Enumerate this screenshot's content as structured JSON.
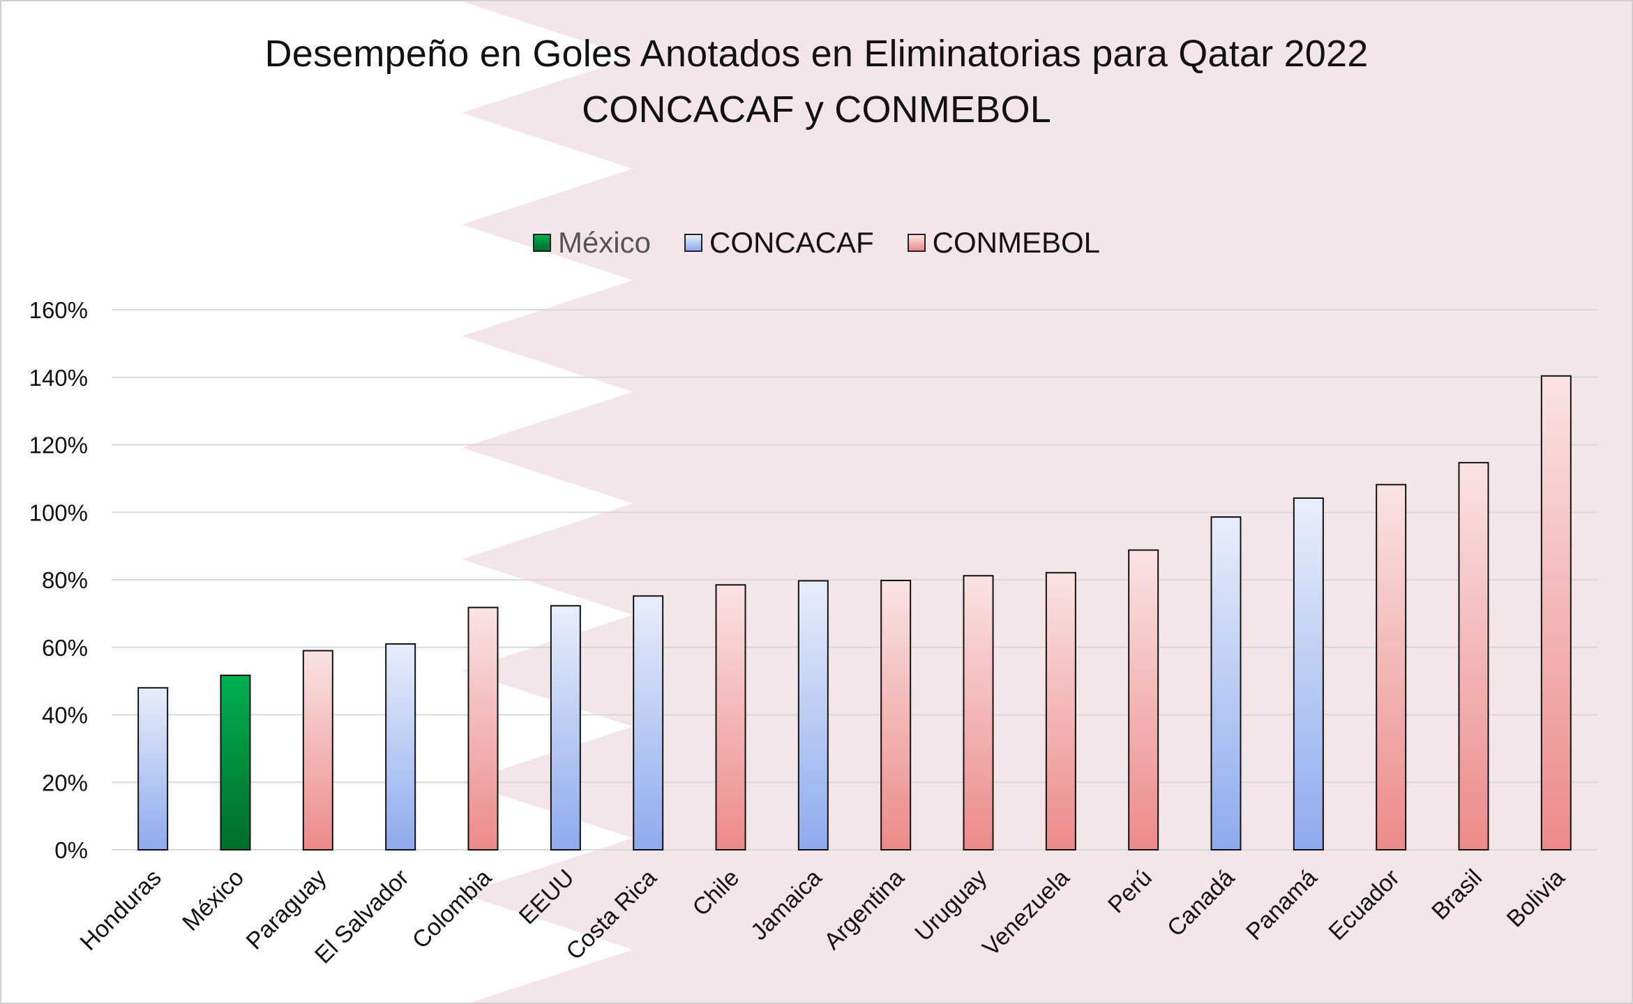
{
  "chart_data": {
    "type": "bar",
    "title": "Desempeño en Goles Anotados en Eliminatorias para Qatar 2022",
    "subtitle": "CONCACAF y CONMEBOL",
    "xlabel": "",
    "ylabel": "",
    "ylim": [
      0,
      160
    ],
    "yticks": [
      "0%",
      "20%",
      "40%",
      "60%",
      "80%",
      "100%",
      "120%",
      "140%",
      "160%"
    ],
    "ytick_values": [
      0,
      20,
      40,
      60,
      80,
      100,
      120,
      140,
      160
    ],
    "grid": true,
    "legend_placement": "top-center",
    "legend": [
      {
        "label": "México",
        "color": "#00b050"
      },
      {
        "label": "CONCACAF",
        "color": "#8eaaee"
      },
      {
        "label": "CONMEBOL",
        "color": "#ee8f8f"
      }
    ],
    "categories": [
      "Honduras",
      "México",
      "Paraguay",
      "El Salvador",
      "Colombia",
      "EEUU",
      "Costa Rica",
      "Chile",
      "Jamaica",
      "Argentina",
      "Uruguay",
      "Venezuela",
      "Perú",
      "Canadá",
      "Panamá",
      "Ecuador",
      "Brasil",
      "Bolivia"
    ],
    "values": [
      48,
      51.7,
      59,
      61,
      71.8,
      72.3,
      75.2,
      78.5,
      79.7,
      79.8,
      81.2,
      82.1,
      88.8,
      98.6,
      104.2,
      108.2,
      114.7,
      140.4
    ],
    "groups": [
      "CONCACAF",
      "México",
      "CONMEBOL",
      "CONCACAF",
      "CONMEBOL",
      "CONCACAF",
      "CONCACAF",
      "CONMEBOL",
      "CONCACAF",
      "CONMEBOL",
      "CONMEBOL",
      "CONMEBOL",
      "CONMEBOL",
      "CONCACAF",
      "CONCACAF",
      "CONMEBOL",
      "CONMEBOL",
      "CONMEBOL"
    ]
  },
  "colors": {
    "mexico_top": "#00b050",
    "mexico_bottom": "#006c2c",
    "concacaf_top": "#e8eefa",
    "concacaf_bottom": "#8eaaee",
    "conmebol_top": "#fae3e3",
    "conmebol_bottom": "#ec8a8a",
    "background_band": "#f4e6e8",
    "grid": "#d9d9d9"
  }
}
